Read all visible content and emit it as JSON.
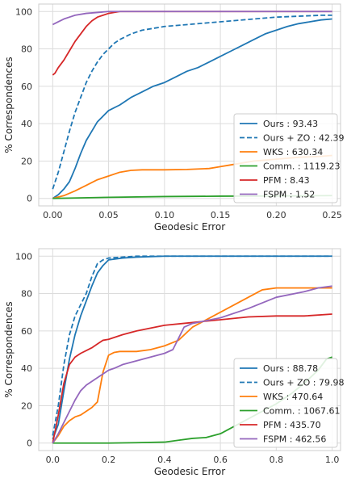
{
  "chart_data": [
    {
      "type": "line",
      "title": "",
      "xlabel": "Geodesic Error",
      "ylabel": "% Correspondences",
      "xlim": [
        -0.0125,
        0.2575
      ],
      "ylim": [
        -4,
        104
      ],
      "xticks": [
        0.0,
        0.05,
        0.1,
        0.15,
        0.2,
        0.25
      ],
      "xtick_labels": [
        "0.00",
        "0.05",
        "0.10",
        "0.15",
        "0.20",
        "0.25"
      ],
      "yticks": [
        0,
        20,
        40,
        60,
        80,
        100
      ],
      "ytick_labels": [
        "0",
        "20",
        "40",
        "60",
        "80",
        "100"
      ],
      "grid": true,
      "legend_position": "bottom-right",
      "series": [
        {
          "name": "Ours : 93.43",
          "color": "#1f77b4",
          "dash": "solid",
          "x": [
            0,
            0.005,
            0.01,
            0.015,
            0.02,
            0.025,
            0.03,
            0.035,
            0.04,
            0.045,
            0.05,
            0.06,
            0.07,
            0.08,
            0.09,
            0.1,
            0.11,
            0.12,
            0.13,
            0.14,
            0.15,
            0.16,
            0.17,
            0.18,
            0.19,
            0.2,
            0.21,
            0.22,
            0.23,
            0.24,
            0.25
          ],
          "y": [
            0,
            2,
            5,
            9,
            16,
            24,
            31,
            36,
            41,
            44,
            47,
            50,
            54,
            57,
            60,
            62,
            65,
            68,
            70,
            73,
            76,
            79,
            82,
            85,
            88,
            90,
            92,
            93.5,
            94.5,
            95.5,
            96
          ]
        },
        {
          "name": "Ours + ZO : 42.39",
          "color": "#1f77b4",
          "dash": "dashed",
          "x": [
            0,
            0.005,
            0.01,
            0.015,
            0.02,
            0.025,
            0.03,
            0.035,
            0.04,
            0.045,
            0.05,
            0.055,
            0.06,
            0.07,
            0.08,
            0.09,
            0.1,
            0.12,
            0.14,
            0.16,
            0.18,
            0.2,
            0.22,
            0.24,
            0.25
          ],
          "y": [
            5,
            14,
            25,
            36,
            46,
            54,
            62,
            68,
            73,
            77,
            80,
            83,
            85,
            88,
            90,
            91,
            92,
            93,
            94,
            95,
            96,
            97,
            97.5,
            98,
            98
          ]
        },
        {
          "name": "WKS : 630.34",
          "color": "#ff7f0e",
          "dash": "solid",
          "x": [
            0,
            0.01,
            0.02,
            0.03,
            0.04,
            0.05,
            0.06,
            0.07,
            0.08,
            0.1,
            0.12,
            0.14,
            0.15,
            0.16,
            0.17,
            0.18,
            0.2,
            0.22,
            0.24,
            0.25
          ],
          "y": [
            0,
            1.5,
            4,
            7,
            10,
            12,
            14,
            15,
            15.3,
            15.3,
            15.5,
            16,
            17,
            18,
            19,
            20,
            21,
            22,
            22.5,
            23
          ]
        },
        {
          "name": "Comm. : 1119.23",
          "color": "#2ca02c",
          "dash": "solid",
          "x": [
            0,
            0.05,
            0.1,
            0.15,
            0.2,
            0.25
          ],
          "y": [
            0,
            0.6,
            1,
            1.2,
            1.3,
            1.5
          ]
        },
        {
          "name": "PFM : 8.43",
          "color": "#d62728",
          "dash": "solid",
          "x": [
            0,
            0.002,
            0.005,
            0.01,
            0.015,
            0.02,
            0.025,
            0.03,
            0.035,
            0.04,
            0.045,
            0.05,
            0.055,
            0.06,
            0.08,
            0.1,
            0.15,
            0.2,
            0.25
          ],
          "y": [
            66,
            67,
            70,
            74,
            79,
            84,
            88,
            92,
            95,
            97,
            98,
            99,
            99.5,
            100,
            100,
            100,
            100,
            100,
            100
          ]
        },
        {
          "name": "FSPM : 1.52",
          "color": "#9467bd",
          "dash": "solid",
          "x": [
            0,
            0.005,
            0.01,
            0.015,
            0.02,
            0.03,
            0.04,
            0.05,
            0.06,
            0.1,
            0.15,
            0.2,
            0.25
          ],
          "y": [
            93,
            94.5,
            96,
            97,
            98,
            99,
            99.5,
            100,
            100,
            100,
            100,
            100,
            100
          ]
        }
      ]
    },
    {
      "type": "line",
      "title": "",
      "xlabel": "Geodesic Error",
      "ylabel": "% Correspondences",
      "xlim": [
        -0.05,
        1.03
      ],
      "ylim": [
        -4,
        104
      ],
      "xticks": [
        0.0,
        0.2,
        0.4,
        0.6,
        0.8,
        1.0
      ],
      "xtick_labels": [
        "0.0",
        "0.2",
        "0.4",
        "0.6",
        "0.8",
        "1.0"
      ],
      "yticks": [
        0,
        20,
        40,
        60,
        80,
        100
      ],
      "ytick_labels": [
        "0",
        "20",
        "40",
        "60",
        "80",
        "100"
      ],
      "grid": true,
      "legend_position": "bottom-right",
      "series": [
        {
          "name": "Ours : 88.78",
          "color": "#1f77b4",
          "dash": "solid",
          "x": [
            0,
            0.02,
            0.04,
            0.06,
            0.08,
            0.1,
            0.12,
            0.14,
            0.16,
            0.18,
            0.2,
            0.25,
            0.3,
            0.4,
            0.6,
            0.8,
            1.0
          ],
          "y": [
            2,
            10,
            28,
            45,
            58,
            68,
            76,
            84,
            91,
            95,
            98,
            99,
            99.5,
            100,
            100,
            100,
            100
          ]
        },
        {
          "name": "Ours + ZO : 79.98",
          "color": "#1f77b4",
          "dash": "dashed",
          "x": [
            0,
            0.02,
            0.04,
            0.06,
            0.08,
            0.1,
            0.12,
            0.14,
            0.16,
            0.18,
            0.2,
            0.25,
            0.3,
            0.4,
            0.6,
            0.8,
            1.0
          ],
          "y": [
            4,
            20,
            42,
            58,
            68,
            74,
            80,
            89,
            96,
            98,
            99,
            99.5,
            100,
            100,
            100,
            100,
            100
          ]
        },
        {
          "name": "WKS : 470.64",
          "color": "#ff7f0e",
          "dash": "solid",
          "x": [
            0,
            0.02,
            0.04,
            0.06,
            0.08,
            0.1,
            0.12,
            0.14,
            0.16,
            0.17,
            0.18,
            0.2,
            0.22,
            0.24,
            0.3,
            0.35,
            0.4,
            0.45,
            0.5,
            0.55,
            0.6,
            0.65,
            0.7,
            0.75,
            0.8,
            0.9,
            1.0
          ],
          "y": [
            0,
            4,
            9,
            12,
            14,
            15,
            17,
            19,
            22,
            30,
            38,
            47,
            48.5,
            49,
            49,
            50,
            52,
            55,
            62,
            66,
            70,
            74,
            78,
            82,
            83,
            83,
            83
          ]
        },
        {
          "name": "Comm. : 1067.61",
          "color": "#2ca02c",
          "dash": "solid",
          "x": [
            0,
            0.1,
            0.2,
            0.3,
            0.4,
            0.45,
            0.5,
            0.55,
            0.6,
            0.65,
            0.7,
            0.75,
            0.8,
            0.85,
            0.9,
            0.95,
            0.98,
            1.0
          ],
          "y": [
            0,
            0,
            0,
            0.2,
            0.5,
            1.5,
            2.5,
            3,
            5,
            9,
            13,
            17,
            21,
            26,
            32,
            39,
            45,
            46
          ]
        },
        {
          "name": "PFM : 435.70",
          "color": "#d62728",
          "dash": "solid",
          "x": [
            0,
            0.02,
            0.04,
            0.06,
            0.08,
            0.1,
            0.12,
            0.14,
            0.16,
            0.18,
            0.2,
            0.25,
            0.3,
            0.4,
            0.5,
            0.6,
            0.7,
            0.8,
            0.9,
            1.0
          ],
          "y": [
            0,
            15,
            32,
            42,
            46,
            48,
            49.5,
            51,
            53,
            55,
            55.5,
            58,
            60,
            63,
            64.5,
            66,
            67.5,
            68,
            68,
            69
          ]
        },
        {
          "name": "FSPM : 462.56",
          "color": "#9467bd",
          "dash": "solid",
          "x": [
            0,
            0.02,
            0.04,
            0.06,
            0.08,
            0.1,
            0.12,
            0.14,
            0.16,
            0.18,
            0.2,
            0.22,
            0.25,
            0.3,
            0.35,
            0.4,
            0.43,
            0.45,
            0.47,
            0.5,
            0.6,
            0.7,
            0.8,
            0.9,
            0.95,
            1.0
          ],
          "y": [
            0,
            5,
            11,
            17,
            23,
            28,
            31,
            33,
            35,
            37,
            39,
            40,
            42,
            44,
            46,
            48,
            50,
            56,
            62,
            64,
            67,
            72,
            78,
            81,
            83,
            84
          ]
        }
      ]
    }
  ]
}
